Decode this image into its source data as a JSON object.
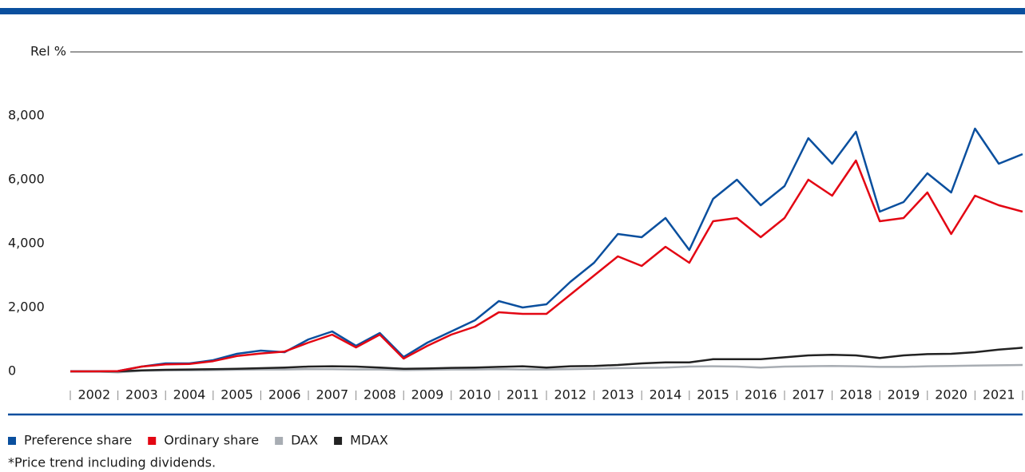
{
  "chart_data": {
    "type": "line",
    "y_label": "Rel %",
    "footnote": "*Price trend including dividends.",
    "x": [
      2002,
      2002.5,
      2003,
      2003.5,
      2004,
      2004.5,
      2005,
      2005.5,
      2006,
      2006.5,
      2007,
      2007.5,
      2008,
      2008.5,
      2009,
      2009.5,
      2010,
      2010.5,
      2011,
      2011.5,
      2012,
      2012.5,
      2013,
      2013.5,
      2014,
      2014.5,
      2015,
      2015.5,
      2016,
      2016.5,
      2017,
      2017.5,
      2018,
      2018.5,
      2019,
      2019.5,
      2020,
      2020.5,
      2021,
      2021.5,
      2022
    ],
    "xlim": [
      2002,
      2022
    ],
    "xticks": [
      {
        "value": 2002.5,
        "label": "2002"
      },
      {
        "value": 2003.5,
        "label": "2003"
      },
      {
        "value": 2004.5,
        "label": "2004"
      },
      {
        "value": 2005.5,
        "label": "2005"
      },
      {
        "value": 2006.5,
        "label": "2006"
      },
      {
        "value": 2007.5,
        "label": "2007"
      },
      {
        "value": 2008.5,
        "label": "2008"
      },
      {
        "value": 2009.5,
        "label": "2009"
      },
      {
        "value": 2010.5,
        "label": "2010"
      },
      {
        "value": 2011.5,
        "label": "2011"
      },
      {
        "value": 2012.5,
        "label": "2012"
      },
      {
        "value": 2013.5,
        "label": "2013"
      },
      {
        "value": 2014.5,
        "label": "2014"
      },
      {
        "value": 2015.5,
        "label": "2015"
      },
      {
        "value": 2016.5,
        "label": "2016"
      },
      {
        "value": 2017.5,
        "label": "2017"
      },
      {
        "value": 2018.5,
        "label": "2018"
      },
      {
        "value": 2019.5,
        "label": "2019"
      },
      {
        "value": 2020.5,
        "label": "2020"
      },
      {
        "value": 2021.5,
        "label": "2021"
      }
    ],
    "ylim": [
      0,
      10000
    ],
    "yticks": [
      0,
      {
        "value": 2000,
        "label": "2,000"
      },
      {
        "value": 4000,
        "label": "4,000"
      },
      {
        "value": 6000,
        "label": "6,000"
      },
      {
        "value": 8000,
        "label": "8,000"
      }
    ],
    "series": [
      {
        "name": "Preference share",
        "color": "#0a4f9e",
        "values": [
          0,
          0,
          10,
          150,
          250,
          250,
          350,
          550,
          650,
          600,
          1000,
          1250,
          800,
          1200,
          450,
          900,
          1250,
          1600,
          2200,
          2000,
          2100,
          2800,
          3400,
          4300,
          4200,
          4800,
          3800,
          5400,
          6000,
          5200,
          5800,
          7300,
          6500,
          7500,
          5000,
          5300,
          6200,
          5600,
          7600,
          6500,
          6800
        ]
      },
      {
        "name": "Ordinary share",
        "color": "#e30613",
        "values": [
          0,
          0,
          10,
          150,
          220,
          230,
          320,
          480,
          560,
          620,
          900,
          1150,
          750,
          1150,
          400,
          800,
          1150,
          1400,
          1850,
          1800,
          1800,
          2400,
          3000,
          3600,
          3300,
          3900,
          3400,
          4700,
          4800,
          4200,
          4800,
          6000,
          5500,
          6600,
          4700,
          4800,
          5600,
          4300,
          5500,
          5200,
          5000
        ]
      },
      {
        "name": "DAX",
        "color": "#a8adb3",
        "values": [
          0,
          0,
          -30,
          20,
          30,
          30,
          40,
          50,
          60,
          60,
          70,
          70,
          60,
          60,
          40,
          50,
          60,
          60,
          70,
          60,
          60,
          70,
          80,
          100,
          110,
          120,
          150,
          160,
          150,
          120,
          150,
          160,
          170,
          160,
          140,
          140,
          160,
          170,
          180,
          190,
          200
        ]
      },
      {
        "name": "MDAX",
        "color": "#222222",
        "values": [
          0,
          0,
          0,
          30,
          50,
          60,
          70,
          80,
          100,
          120,
          150,
          160,
          150,
          120,
          80,
          90,
          110,
          120,
          140,
          160,
          120,
          160,
          170,
          200,
          250,
          280,
          280,
          380,
          380,
          380,
          440,
          500,
          520,
          500,
          420,
          500,
          540,
          550,
          600,
          680,
          740
        ]
      }
    ]
  }
}
